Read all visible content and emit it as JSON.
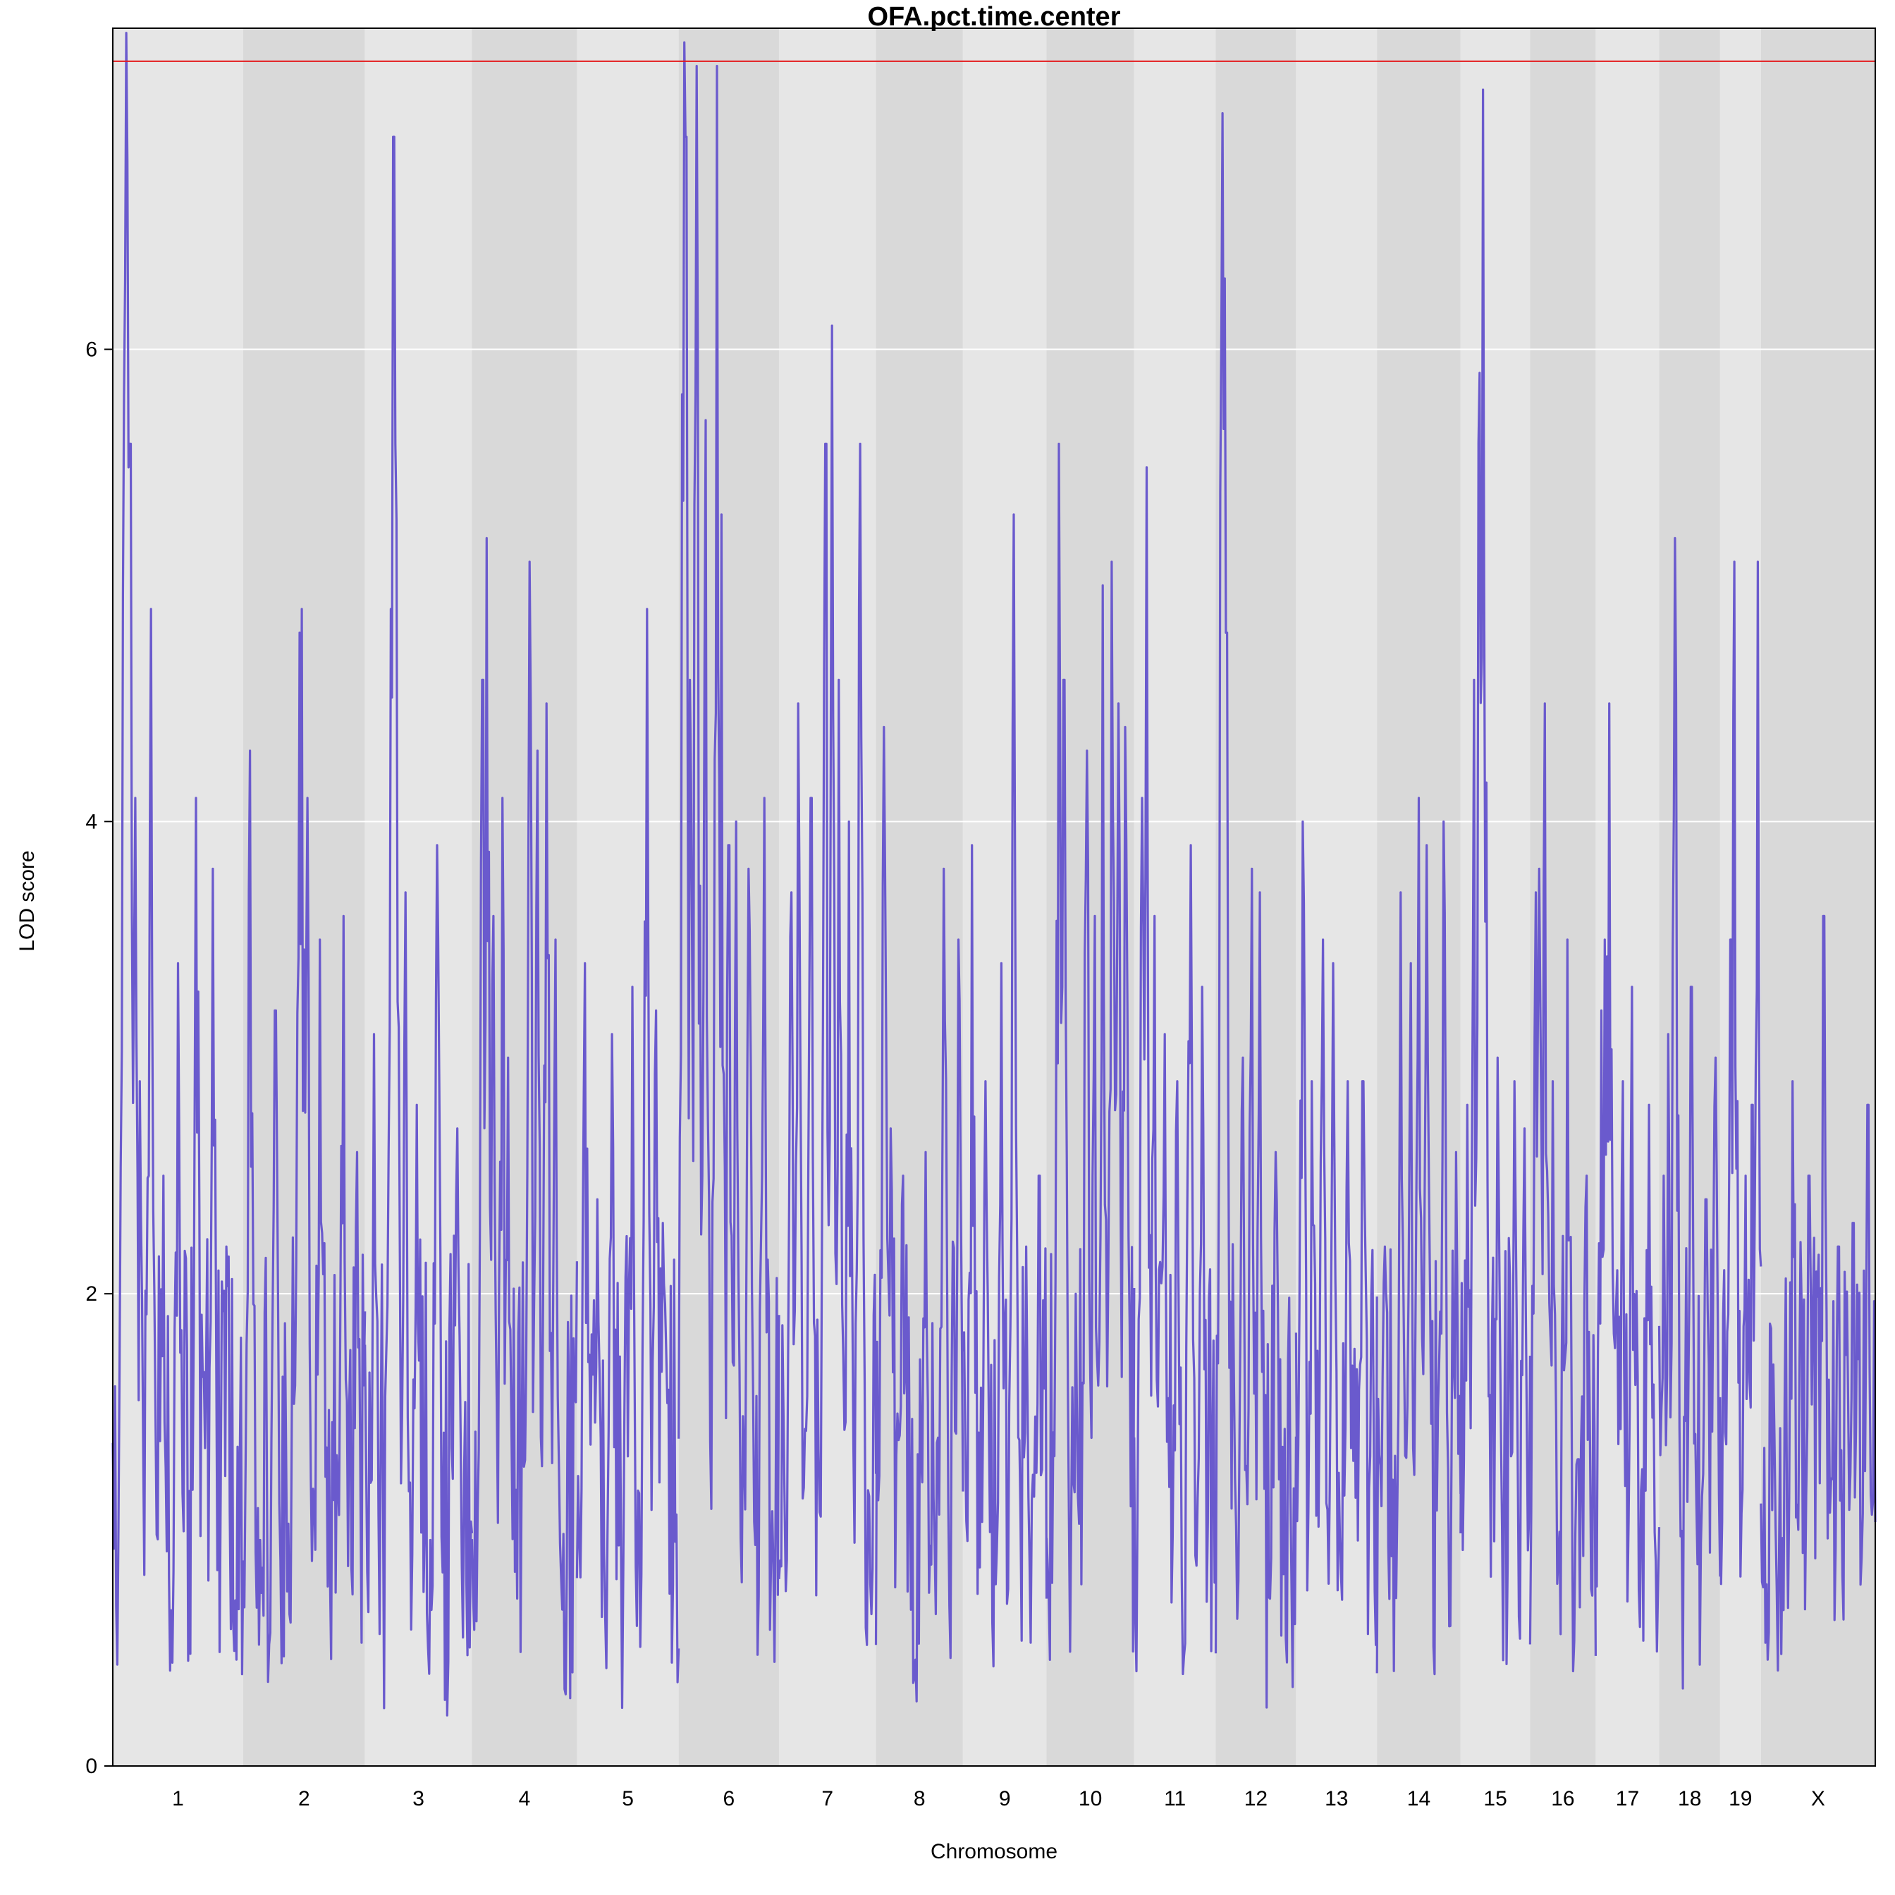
{
  "chart_data": {
    "type": "line",
    "title": "OFA.pct.time.center",
    "xlabel": "Chromosome",
    "ylabel": "LOD score",
    "ylim": [
      0,
      7.36
    ],
    "yticks": [
      0,
      2,
      4,
      6
    ],
    "grid": true,
    "threshold": 7.22,
    "threshold_color": "#e41a1c",
    "line_color": "#6a5acd",
    "band_colors": [
      "#e6e6e6",
      "#d9d9d9"
    ],
    "chromosomes": [
      {
        "label": "1",
        "length": 195
      },
      {
        "label": "2",
        "length": 182
      },
      {
        "label": "3",
        "length": 160
      },
      {
        "label": "4",
        "length": 157
      },
      {
        "label": "5",
        "length": 152
      },
      {
        "label": "6",
        "length": 150
      },
      {
        "label": "7",
        "length": 145
      },
      {
        "label": "8",
        "length": 130
      },
      {
        "label": "9",
        "length": 125
      },
      {
        "label": "10",
        "length": 131
      },
      {
        "label": "11",
        "length": 122
      },
      {
        "label": "12",
        "length": 120
      },
      {
        "label": "13",
        "length": 121
      },
      {
        "label": "14",
        "length": 125
      },
      {
        "label": "15",
        "length": 104
      },
      {
        "label": "16",
        "length": 98
      },
      {
        "label": "17",
        "length": 95
      },
      {
        "label": "18",
        "length": 91
      },
      {
        "label": "19",
        "length": 61
      },
      {
        "label": "X",
        "length": 171
      }
    ],
    "series": [
      {
        "peaks": [
          {
            "chr": "1",
            "pos": [
              17,
              18,
              20,
              22,
              24,
              26,
              29,
              33,
              40,
              57,
              75,
              98,
              125,
              150,
              170
            ],
            "lod": [
              5.8,
              6.3,
              7.4,
              6.8,
              5.5,
              5.6,
              3.6,
              4.1,
              2.9,
              4.9,
              2.5,
              3.4,
              4.1,
              3.8,
              2.2
            ]
          },
          {
            "chr": "2",
            "pos": [
              10,
              48,
              84,
              88,
              96,
              114,
              150,
              170
            ],
            "lod": [
              4.3,
              3.2,
              4.8,
              4.9,
              4.1,
              3.5,
              3.6,
              2.6
            ]
          },
          {
            "chr": "3",
            "pos": [
              14,
              39,
              43,
              46,
              60,
              77,
              108,
              138
            ],
            "lod": [
              3.1,
              4.9,
              6.9,
              5.6,
              3.7,
              2.8,
              3.9,
              2.7
            ]
          },
          {
            "chr": "4",
            "pos": [
              16,
              22,
              32,
              45,
              54,
              86,
              98,
              112,
              125
            ],
            "lod": [
              4.6,
              5.2,
              3.6,
              4.1,
              3.0,
              5.1,
              4.3,
              4.5,
              3.5
            ]
          },
          {
            "chr": "5",
            "pos": [
              12,
              30,
              52,
              82,
              104,
              118,
              128
            ],
            "lod": [
              3.4,
              2.4,
              3.1,
              3.3,
              4.9,
              3.2,
              2.3
            ]
          },
          {
            "chr": "6",
            "pos": [
              8,
              11,
              17,
              27,
              40,
              57,
              64,
              75,
              86,
              105,
              128
            ],
            "lod": [
              7.3,
              6.9,
              4.6,
              7.2,
              5.7,
              7.2,
              5.3,
              3.9,
              4.0,
              3.8,
              4.1
            ]
          },
          {
            "chr": "7",
            "pos": [
              18,
              28,
              48,
              70,
              80,
              90,
              104,
              121
            ],
            "lod": [
              3.7,
              4.5,
              4.1,
              5.6,
              6.1,
              4.6,
              4.0,
              5.6
            ]
          },
          {
            "chr": "8",
            "pos": [
              12,
              22,
              40,
              74,
              102,
              124
            ],
            "lod": [
              4.4,
              2.7,
              2.5,
              2.6,
              3.8,
              3.5
            ]
          },
          {
            "chr": "9",
            "pos": [
              14,
              34,
              58,
              76,
              94,
              114
            ],
            "lod": [
              3.9,
              2.9,
              3.4,
              5.3,
              2.2,
              2.5
            ]
          },
          {
            "chr": "10",
            "pos": [
              18,
              26,
              44,
              60,
              72,
              84,
              98,
              108,
              118
            ],
            "lod": [
              5.6,
              4.6,
              2.0,
              4.3,
              3.6,
              5.0,
              5.1,
              4.5,
              4.4
            ]
          },
          {
            "chr": "11",
            "pos": [
              12,
              18,
              30,
              46,
              64,
              84,
              102
            ],
            "lod": [
              4.1,
              5.5,
              3.6,
              3.1,
              2.9,
              3.9,
              3.3
            ]
          },
          {
            "chr": "12",
            "pos": [
              10,
              13,
              16,
              40,
              54,
              66,
              90
            ],
            "lod": [
              7.0,
              6.3,
              4.8,
              3.0,
              3.8,
              3.7,
              2.6
            ]
          },
          {
            "chr": "13",
            "pos": [
              10,
              24,
              40,
              56,
              78,
              100
            ],
            "lod": [
              4.0,
              2.9,
              3.5,
              3.4,
              2.9,
              2.9
            ]
          },
          {
            "chr": "14",
            "pos": [
              12,
              36,
              50,
              62,
              74,
              100,
              118
            ],
            "lod": [
              2.2,
              3.7,
              3.4,
              4.1,
              3.9,
              4.0,
              2.6
            ]
          },
          {
            "chr": "15",
            "pos": [
              10,
              20,
              28,
              34,
              56,
              80,
              96
            ],
            "lod": [
              2.8,
              4.6,
              5.9,
              7.1,
              3.0,
              2.9,
              2.7
            ]
          },
          {
            "chr": "16",
            "pos": [
              8,
              14,
              22,
              34,
              56,
              84
            ],
            "lod": [
              3.7,
              3.8,
              4.5,
              2.9,
              3.5,
              2.5
            ]
          },
          {
            "chr": "17",
            "pos": [
              8,
              14,
              20,
              40,
              54,
              80
            ],
            "lod": [
              3.2,
              3.5,
              4.5,
              2.9,
              3.3,
              2.8
            ]
          },
          {
            "chr": "18",
            "pos": [
              6,
              14,
              24,
              48,
              70,
              84
            ],
            "lod": [
              2.5,
              3.1,
              5.2,
              3.3,
              2.4,
              3.0
            ]
          },
          {
            "chr": "19",
            "pos": [
              6,
              16,
              22,
              38,
              48,
              56
            ],
            "lod": [
              2.1,
              3.5,
              5.1,
              2.5,
              2.8,
              5.1
            ]
          },
          {
            "chr": "X",
            "pos": [
              18,
              48,
              72,
              94,
              116,
              138,
              160
            ],
            "lod": [
              1.7,
              2.9,
              2.5,
              3.6,
              2.2,
              2.3,
              2.8
            ]
          }
        ]
      }
    ]
  }
}
